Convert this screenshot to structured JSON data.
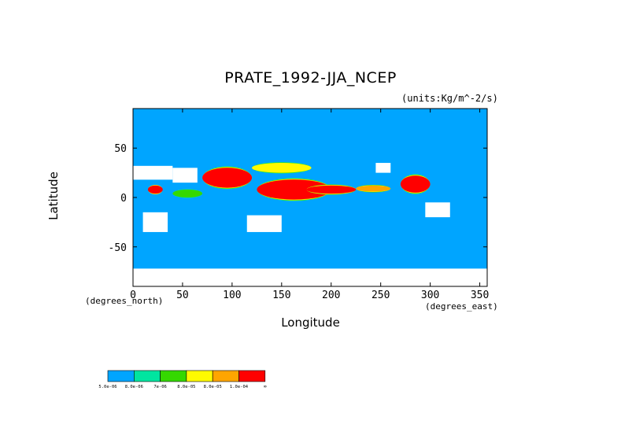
{
  "chart_data": {
    "type": "heatmap",
    "title": "PRATE_1992-JJA_NCEP",
    "units": "(units:Kg/m^-2/s)",
    "xlabel": "Longitude",
    "ylabel": "Latitude",
    "x_units": "(degrees_east)",
    "y_units": "(degrees_north)",
    "xlim": [
      0,
      357.5
    ],
    "ylim": [
      -90,
      90
    ],
    "x_ticks": [
      0,
      50,
      100,
      150,
      200,
      250,
      300,
      350
    ],
    "y_ticks": [
      -50,
      0,
      50
    ],
    "legend": {
      "bins": [
        {
          "label": "5.0e-06",
          "color": "#00a5ff"
        },
        {
          "label": "8.0e-06",
          "color": "#00e5a0"
        },
        {
          "label": "7e-06",
          "color": "#35d800"
        },
        {
          "label": "8.0e-05",
          "color": "#fffa00"
        },
        {
          "label": "8.0e-05",
          "color": "#ffa500"
        },
        {
          "label": "1.0e-04",
          "color": "#ff0000"
        }
      ],
      "end_label": "∞",
      "low_color": "#ffffff"
    },
    "regions": [
      {
        "level": 6,
        "lon": [
          70,
          120
        ],
        "lat": [
          10,
          30
        ]
      },
      {
        "level": 6,
        "lon": [
          125,
          200
        ],
        "lat": [
          -2,
          18
        ]
      },
      {
        "level": 6,
        "lon": [
          175,
          225
        ],
        "lat": [
          4,
          12
        ]
      },
      {
        "level": 6,
        "lon": [
          270,
          300
        ],
        "lat": [
          5,
          22
        ]
      },
      {
        "level": 6,
        "lon": [
          15,
          30
        ],
        "lat": [
          4,
          12
        ]
      },
      {
        "level": 5,
        "lon": [
          225,
          260
        ],
        "lat": [
          6,
          12
        ]
      },
      {
        "level": 4,
        "lon": [
          120,
          180
        ],
        "lat": [
          25,
          35
        ]
      },
      {
        "level": 3,
        "lon": [
          40,
          70
        ],
        "lat": [
          0,
          8
        ]
      }
    ],
    "dry_regions": [
      {
        "lon": [
          -20,
          40
        ],
        "lat": [
          18,
          32
        ]
      },
      {
        "lon": [
          40,
          65
        ],
        "lat": [
          15,
          30
        ]
      },
      {
        "lon": [
          115,
          150
        ],
        "lat": [
          -35,
          -18
        ]
      },
      {
        "lon": [
          10,
          35
        ],
        "lat": [
          -35,
          -15
        ]
      },
      {
        "lon": [
          295,
          320
        ],
        "lat": [
          -20,
          -5
        ]
      },
      {
        "lon": [
          245,
          260
        ],
        "lat": [
          25,
          35
        ]
      },
      {
        "lon": [
          0,
          357.5
        ],
        "lat": [
          -90,
          -72
        ]
      }
    ]
  }
}
